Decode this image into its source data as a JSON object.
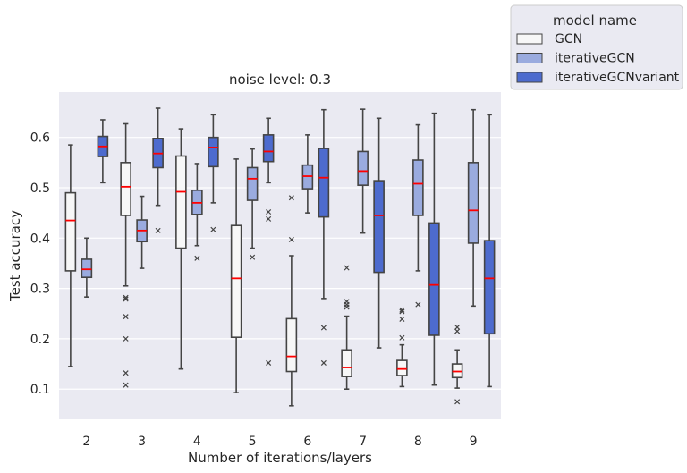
{
  "chart_data": {
    "type": "box",
    "title": "noise level: 0.3",
    "xlabel": "Number of iterations/layers",
    "ylabel": "Test accuracy",
    "categories": [
      "2",
      "3",
      "4",
      "5",
      "6",
      "7",
      "8",
      "9"
    ],
    "ylim": [
      0.04,
      0.69
    ],
    "yticks": [
      "0.1",
      "0.2",
      "0.3",
      "0.4",
      "0.5",
      "0.6"
    ],
    "ytick_values": [
      0.1,
      0.2,
      0.3,
      0.4,
      0.5,
      0.6
    ],
    "grid": true,
    "legend": {
      "title": "model name",
      "placement": "outside-top-right"
    },
    "median_color": "#ff0000",
    "background_color": "#eaeaf2",
    "series": [
      {
        "name": "GCN",
        "color": "#f7f7f7",
        "boxes": [
          {
            "whislo": 0.145,
            "q1": 0.335,
            "med": 0.435,
            "q3": 0.49,
            "whishi": 0.585,
            "fliers": []
          },
          {
            "whislo": 0.305,
            "q1": 0.445,
            "med": 0.502,
            "q3": 0.55,
            "whishi": 0.627,
            "fliers": [
              0.282,
              0.279,
              0.244,
              0.2,
              0.132,
              0.108
            ]
          },
          {
            "whislo": 0.14,
            "q1": 0.38,
            "med": 0.492,
            "q3": 0.563,
            "whishi": 0.617,
            "fliers": []
          },
          {
            "whislo": 0.093,
            "q1": 0.203,
            "med": 0.32,
            "q3": 0.425,
            "whishi": 0.557,
            "fliers": []
          },
          {
            "whislo": 0.067,
            "q1": 0.135,
            "med": 0.165,
            "q3": 0.24,
            "whishi": 0.365,
            "fliers": [
              0.397,
              0.48
            ]
          },
          {
            "whislo": 0.1,
            "q1": 0.125,
            "med": 0.143,
            "q3": 0.178,
            "whishi": 0.245,
            "fliers": [
              0.341,
              0.274,
              0.268,
              0.263
            ]
          },
          {
            "whislo": 0.105,
            "q1": 0.127,
            "med": 0.14,
            "q3": 0.157,
            "whishi": 0.188,
            "fliers": [
              0.257,
              0.254,
              0.239,
              0.202
            ]
          },
          {
            "whislo": 0.102,
            "q1": 0.123,
            "med": 0.135,
            "q3": 0.15,
            "whishi": 0.178,
            "fliers": [
              0.223,
              0.215,
              0.075
            ]
          }
        ]
      },
      {
        "name": "iterativeGCN",
        "color": "#9aabdf",
        "boxes": [
          {
            "whislo": 0.283,
            "q1": 0.322,
            "med": 0.338,
            "q3": 0.358,
            "whishi": 0.4,
            "fliers": []
          },
          {
            "whislo": 0.34,
            "q1": 0.393,
            "med": 0.415,
            "q3": 0.436,
            "whishi": 0.483,
            "fliers": []
          },
          {
            "whislo": 0.385,
            "q1": 0.447,
            "med": 0.47,
            "q3": 0.495,
            "whishi": 0.548,
            "fliers": [
              0.36
            ]
          },
          {
            "whislo": 0.38,
            "q1": 0.475,
            "med": 0.518,
            "q3": 0.54,
            "whishi": 0.577,
            "fliers": [
              0.362
            ]
          },
          {
            "whislo": 0.45,
            "q1": 0.498,
            "med": 0.523,
            "q3": 0.545,
            "whishi": 0.605,
            "fliers": []
          },
          {
            "whislo": 0.41,
            "q1": 0.505,
            "med": 0.533,
            "q3": 0.572,
            "whishi": 0.656,
            "fliers": []
          },
          {
            "whislo": 0.335,
            "q1": 0.445,
            "med": 0.508,
            "q3": 0.555,
            "whishi": 0.625,
            "fliers": [
              0.268
            ]
          },
          {
            "whislo": 0.265,
            "q1": 0.39,
            "med": 0.455,
            "q3": 0.55,
            "whishi": 0.655,
            "fliers": []
          }
        ]
      },
      {
        "name": "iterativeGCNvariant",
        "color": "#4d6bce",
        "boxes": [
          {
            "whislo": 0.51,
            "q1": 0.562,
            "med": 0.582,
            "q3": 0.602,
            "whishi": 0.635,
            "fliers": []
          },
          {
            "whislo": 0.465,
            "q1": 0.54,
            "med": 0.568,
            "q3": 0.598,
            "whishi": 0.658,
            "fliers": [
              0.415
            ]
          },
          {
            "whislo": 0.47,
            "q1": 0.542,
            "med": 0.58,
            "q3": 0.6,
            "whishi": 0.645,
            "fliers": [
              0.417
            ]
          },
          {
            "whislo": 0.51,
            "q1": 0.552,
            "med": 0.572,
            "q3": 0.605,
            "whishi": 0.638,
            "fliers": [
              0.452,
              0.438,
              0.152
            ]
          },
          {
            "whislo": 0.28,
            "q1": 0.442,
            "med": 0.52,
            "q3": 0.578,
            "whishi": 0.655,
            "fliers": [
              0.222,
              0.152
            ]
          },
          {
            "whislo": 0.182,
            "q1": 0.332,
            "med": 0.445,
            "q3": 0.514,
            "whishi": 0.638,
            "fliers": []
          },
          {
            "whislo": 0.108,
            "q1": 0.207,
            "med": 0.307,
            "q3": 0.43,
            "whishi": 0.648,
            "fliers": []
          },
          {
            "whislo": 0.105,
            "q1": 0.21,
            "med": 0.32,
            "q3": 0.395,
            "whishi": 0.645,
            "fliers": []
          }
        ]
      }
    ]
  }
}
